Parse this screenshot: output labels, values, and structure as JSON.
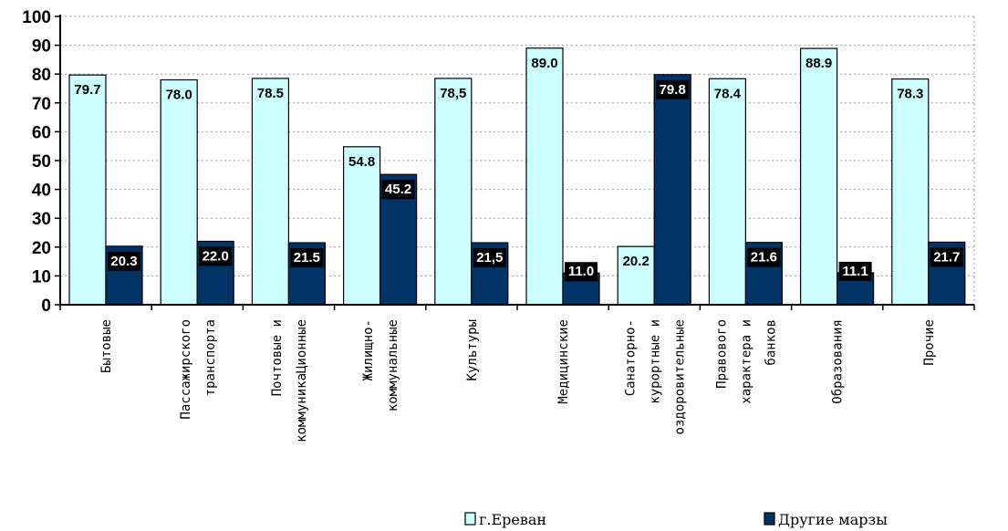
{
  "chart_data": {
    "type": "bar",
    "categories": [
      [
        "Бытовые"
      ],
      [
        "Пассажирского",
        "транспорта"
      ],
      [
        "Почтовые и",
        "коммуникаЦионные"
      ],
      [
        "Жилищно-",
        "коммунальные"
      ],
      [
        "Культуры"
      ],
      [
        "Медицинские"
      ],
      [
        "Санаторно-",
        "курортные и",
        "оздоровительные"
      ],
      [
        "Правового",
        "характера и",
        "банков"
      ],
      [
        "Образования"
      ],
      [
        "Прочие"
      ]
    ],
    "series": [
      {
        "name": "г.Ереван",
        "color": "#ccffff",
        "values": [
          79.7,
          78.0,
          78.5,
          54.8,
          78.5,
          89.0,
          20.2,
          78.4,
          88.9,
          78.3
        ],
        "labels": [
          "79.7",
          "78.0",
          "78.5",
          "54.8",
          "78,5",
          "89.0",
          "20.2",
          "78.4",
          "88.9",
          "78.3"
        ]
      },
      {
        "name": "Другие марзы",
        "color": "#003366",
        "values": [
          20.3,
          22.0,
          21.5,
          45.2,
          21.5,
          11.0,
          79.8,
          21.6,
          11.1,
          21.7
        ],
        "labels": [
          "20.3",
          "22.0",
          "21.5",
          "45.2",
          "21,5",
          "11.0",
          "79.8",
          "21.6",
          "11.1",
          "21.7"
        ]
      }
    ],
    "ylim": [
      0,
      100
    ],
    "yticks": [
      "0",
      "10",
      "20",
      "30",
      "40",
      "50",
      "60",
      "70",
      "80",
      "90",
      "100"
    ],
    "grid": true,
    "legend": "bottom"
  }
}
